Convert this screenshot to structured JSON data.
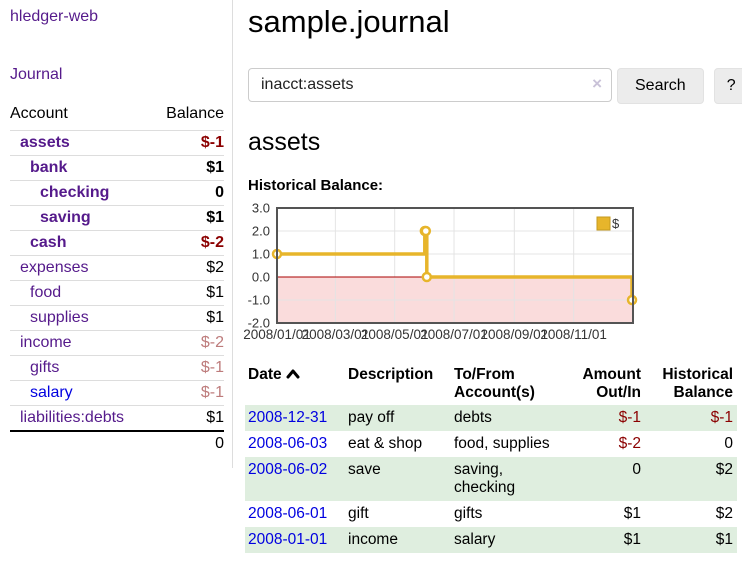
{
  "sidebar": {
    "app_title": "hledger-web",
    "nav": {
      "journal": "Journal"
    },
    "accounts_table": {
      "headers": {
        "account": "Account",
        "balance": "Balance"
      },
      "rows": [
        {
          "name": "assets",
          "indent": 1,
          "bold": true,
          "link_color": "purple",
          "balance": "$-1",
          "balance_color": "negative"
        },
        {
          "name": "bank",
          "indent": 2,
          "bold": true,
          "link_color": "purple",
          "balance": "$1",
          "balance_color": "normal"
        },
        {
          "name": "checking",
          "indent": 3,
          "bold": true,
          "link_color": "purple",
          "balance": "0",
          "balance_color": "normal"
        },
        {
          "name": "saving",
          "indent": 3,
          "bold": true,
          "link_color": "purple",
          "balance": "$1",
          "balance_color": "normal"
        },
        {
          "name": "cash",
          "indent": 2,
          "bold": true,
          "link_color": "purple",
          "balance": "$-2",
          "balance_color": "negative"
        },
        {
          "name": "expenses",
          "indent": 1,
          "bold": false,
          "link_color": "purple",
          "balance": "$2",
          "balance_color": "normal"
        },
        {
          "name": "food",
          "indent": 2,
          "bold": false,
          "link_color": "purple",
          "balance": "$1",
          "balance_color": "normal"
        },
        {
          "name": "supplies",
          "indent": 2,
          "bold": false,
          "link_color": "purple",
          "balance": "$1",
          "balance_color": "normal"
        },
        {
          "name": "income",
          "indent": 1,
          "bold": false,
          "link_color": "purple",
          "balance": "$-2",
          "balance_color": "negative-dim"
        },
        {
          "name": "gifts",
          "indent": 2,
          "bold": false,
          "link_color": "purple",
          "balance": "$-1",
          "balance_color": "negative-dim"
        },
        {
          "name": "salary",
          "indent": 2,
          "bold": false,
          "link_color": "blue",
          "balance": "$-1",
          "balance_color": "negative-dim"
        },
        {
          "name": "liabilities:debts",
          "indent": 1,
          "bold": false,
          "link_color": "purple",
          "balance": "$1",
          "balance_color": "normal"
        }
      ],
      "total": "0"
    }
  },
  "header": {
    "title": "sample.journal"
  },
  "search": {
    "value": "inacct:assets",
    "clear_icon": "×",
    "button_label": "Search",
    "help_label": "?"
  },
  "account_page": {
    "title": "assets",
    "chart_label": "Historical Balance:"
  },
  "chart_data": {
    "type": "line",
    "step": true,
    "title": "Historical Balance",
    "xlim": [
      "2008-01-01",
      "2009-01-01"
    ],
    "ylim": [
      -2,
      3
    ],
    "x_ticks": [
      "2008/01/01",
      "2008/03/01",
      "2008/05/01",
      "2008/07/01",
      "2008/09/01",
      "2008/11/01"
    ],
    "y_ticks": [
      "3.0",
      "2.0",
      "1.0",
      "0.0",
      "-1.0",
      "-2.0"
    ],
    "grid": true,
    "legend_position": "top-right",
    "negative_region_shaded": true,
    "series": [
      {
        "name": "$",
        "points": [
          [
            "2008-01-01",
            1
          ],
          [
            "2008-06-01",
            2
          ],
          [
            "2008-06-02",
            2
          ],
          [
            "2008-06-03",
            0
          ],
          [
            "2008-12-31",
            -1
          ]
        ]
      }
    ]
  },
  "transactions_table": {
    "headers": {
      "date": "Date",
      "description": "Description",
      "accounts": "To/From Account(s)",
      "amount": "Amount Out/In",
      "balance": "Historical Balance"
    },
    "sort_ascending": true,
    "rows": [
      {
        "date": "2008-12-31",
        "description": "pay off",
        "accounts": "debts",
        "amount": "$-1",
        "amount_negative": true,
        "balance": "$-1",
        "balance_negative": true
      },
      {
        "date": "2008-06-03",
        "description": "eat & shop",
        "accounts": "food, supplies",
        "amount": "$-2",
        "amount_negative": true,
        "balance": "0",
        "balance_negative": false
      },
      {
        "date": "2008-06-02",
        "description": "save",
        "accounts": "saving, checking",
        "amount": "0",
        "amount_negative": false,
        "balance": "$2",
        "balance_negative": false
      },
      {
        "date": "2008-06-01",
        "description": "gift",
        "accounts": "gifts",
        "amount": "$1",
        "amount_negative": false,
        "balance": "$2",
        "balance_negative": false
      },
      {
        "date": "2008-01-01",
        "description": "income",
        "accounts": "salary",
        "amount": "$1",
        "amount_negative": false,
        "balance": "$1",
        "balance_negative": false
      }
    ]
  },
  "colors": {
    "link_purple": "#551a8b",
    "link_blue": "#0000e0",
    "negative": "#8b0000",
    "negative_dim": "#bd7b7b",
    "row_stripe_green": "#dfeedf",
    "chart_line_gold": "#e7b52b",
    "chart_negative_fill": "#fadcdc",
    "chart_zero_line": "#aa0000"
  }
}
